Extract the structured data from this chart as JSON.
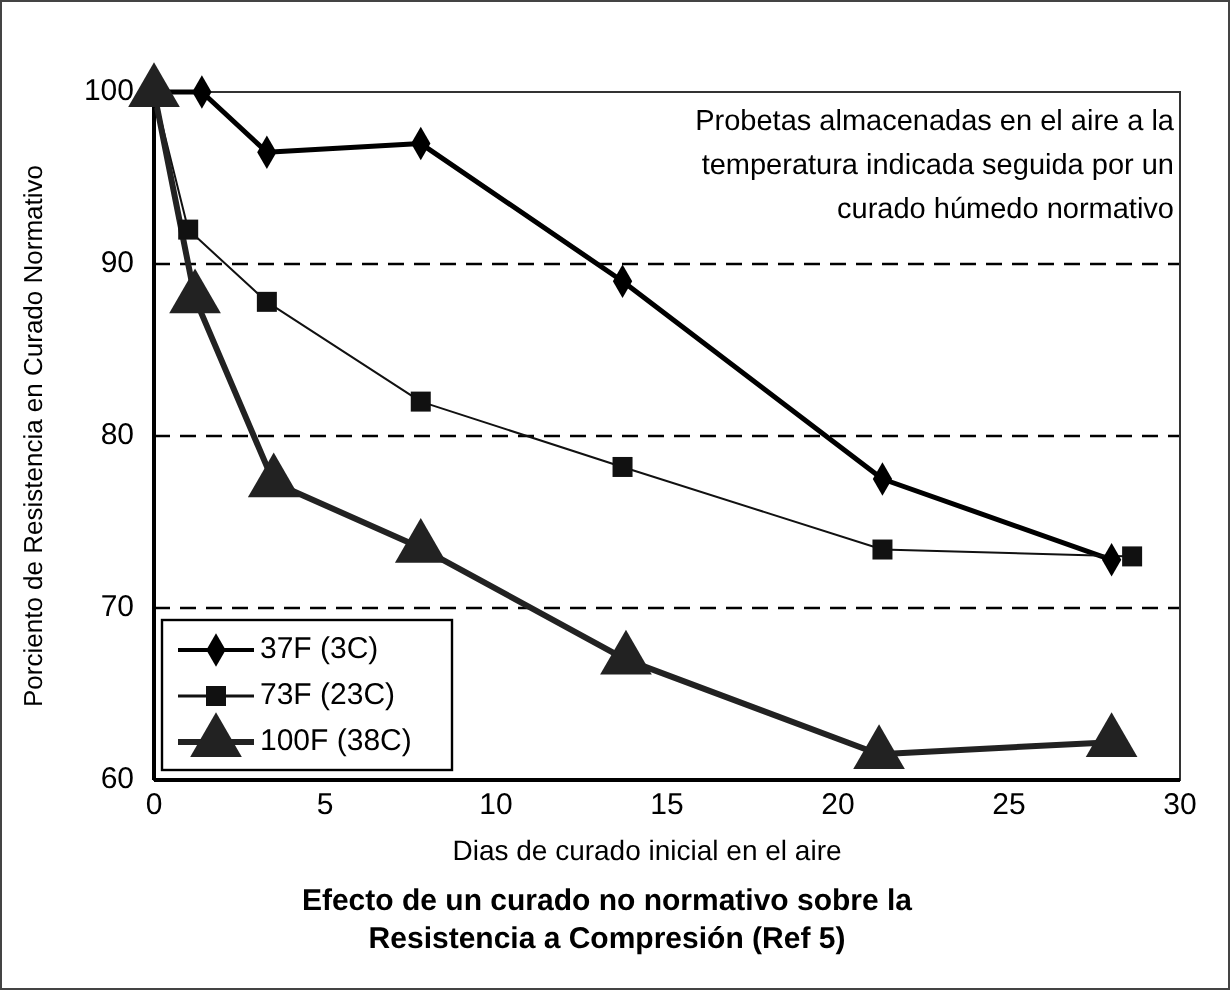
{
  "chart_data": {
    "type": "line",
    "title": "Efecto de un curado no normativo sobre la Resistencia a Compresión (Ref 5)",
    "xlabel": "Dias de curado inicial en el aire",
    "ylabel": "Porciento de Resistencia en Curado Normativo",
    "annotations": [
      "Probetas almacenadas en el aire a la temperatura indicada seguida por un curado húmedo normativo"
    ],
    "xlim": [
      0,
      30
    ],
    "xticks": [
      0,
      5,
      10,
      15,
      20,
      25,
      30
    ],
    "ylim": [
      60,
      100
    ],
    "yticks": [
      60,
      70,
      80,
      90,
      100
    ],
    "grid": "y",
    "legend": "bottom left",
    "series": [
      {
        "name": "37F (3C)",
        "color": "#000000",
        "marker": "diamond",
        "x": [
          0,
          1.4,
          3.3,
          7.8,
          13.7,
          21.3,
          28
        ],
        "values": [
          100,
          100,
          96.5,
          97,
          89,
          77.5,
          72.8
        ]
      },
      {
        "name": "73F (23C)",
        "color": "#111111",
        "marker": "square",
        "x": [
          0,
          1,
          3.3,
          7.8,
          13.7,
          21.3,
          28.6
        ],
        "values": [
          100,
          92,
          87.8,
          82,
          78.2,
          73.4,
          73
        ]
      },
      {
        "name": "100F (38C)",
        "color": "#222222",
        "marker": "triangle",
        "x": [
          0,
          1.2,
          3.5,
          7.8,
          13.8,
          21.2,
          28
        ],
        "values": [
          100,
          88,
          77.3,
          73.5,
          67,
          61.5,
          62.2
        ]
      }
    ]
  }
}
